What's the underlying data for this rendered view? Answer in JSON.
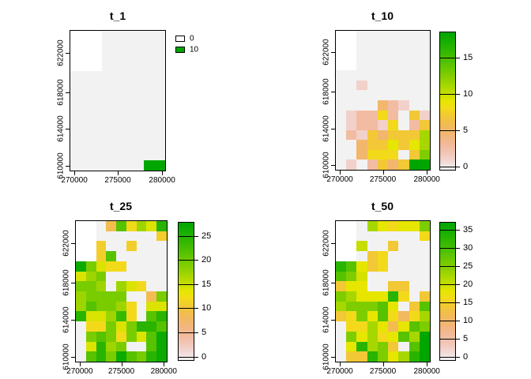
{
  "figure": {
    "background_color": "#ffffff",
    "palette_name": "reversed terrain.colors (white-pink-tan-yellow-green)",
    "na_color": "#ffffff",
    "zero_color": "#f2f2f2",
    "max_color": "#00a600"
  },
  "axes": {
    "x_tick_labels": [
      "270000",
      "275000",
      "280000"
    ],
    "y_tick_labels": [
      "610000",
      "614000",
      "618000",
      "622000"
    ]
  },
  "chart_data": [
    {
      "type": "heatmap",
      "title": "t_1",
      "vmax": 10,
      "x_ticks": [
        "270000",
        "275000",
        "280000"
      ],
      "y_ticks": [
        "610000",
        "614000",
        "618000",
        "622000"
      ],
      "legend": {
        "type": "swatches",
        "items": [
          {
            "label": "0",
            "value": 0
          },
          {
            "label": "10",
            "value": 10
          }
        ]
      },
      "grid": [
        [
          null,
          null,
          null,
          0,
          0,
          0,
          0,
          0,
          0
        ],
        [
          null,
          null,
          null,
          0,
          0,
          0,
          0,
          0,
          0
        ],
        [
          null,
          null,
          null,
          0,
          0,
          0,
          0,
          0,
          0
        ],
        [
          null,
          null,
          null,
          0,
          0,
          0,
          0,
          0,
          0
        ],
        [
          0,
          0,
          0,
          0,
          0,
          0,
          0,
          0,
          0
        ],
        [
          0,
          0,
          0,
          0,
          0,
          0,
          0,
          0,
          0
        ],
        [
          0,
          0,
          0,
          0,
          0,
          0,
          0,
          0,
          0
        ],
        [
          0,
          0,
          0,
          0,
          0,
          0,
          0,
          0,
          0
        ],
        [
          0,
          0,
          0,
          0,
          0,
          0,
          0,
          0,
          0
        ],
        [
          0,
          0,
          0,
          0,
          0,
          0,
          0,
          0,
          0
        ],
        [
          0,
          0,
          0,
          0,
          0,
          0,
          0,
          0,
          0
        ],
        [
          0,
          0,
          0,
          0,
          0,
          0,
          0,
          0,
          0
        ],
        [
          0,
          0,
          0,
          0,
          0,
          0,
          0,
          0,
          0
        ],
        [
          0,
          0,
          0,
          0,
          0,
          0,
          0,
          10,
          10
        ]
      ]
    },
    {
      "type": "heatmap",
      "title": "t_10",
      "vmax": 18,
      "x_ticks": [
        "270000",
        "275000",
        "280000"
      ],
      "y_ticks": [
        "610000",
        "614000",
        "618000",
        "622000"
      ],
      "legend": {
        "type": "colorbar",
        "ticks": [
          0,
          5,
          10,
          15
        ]
      },
      "grid": [
        [
          null,
          null,
          0,
          0,
          0,
          0,
          0,
          0,
          0
        ],
        [
          null,
          null,
          0,
          0,
          0,
          0,
          0,
          0,
          0
        ],
        [
          null,
          null,
          0,
          0,
          0,
          0,
          0,
          0,
          0
        ],
        [
          null,
          null,
          0,
          0,
          0,
          0,
          0,
          0,
          0
        ],
        [
          0,
          0,
          0,
          0,
          0,
          0,
          0,
          0,
          0
        ],
        [
          0,
          0,
          1.5,
          0,
          0,
          0,
          0,
          0,
          0
        ],
        [
          0,
          0,
          0,
          0,
          0,
          0,
          0,
          0,
          0
        ],
        [
          0,
          0,
          0,
          0,
          5,
          3,
          1.5,
          0,
          0
        ],
        [
          0,
          1.5,
          3,
          3,
          8,
          3,
          0,
          7,
          1.5
        ],
        [
          0,
          1.5,
          3,
          3,
          1.5,
          8,
          0,
          3,
          7
        ],
        [
          0,
          3,
          1.5,
          7,
          5,
          7,
          7,
          7,
          11
        ],
        [
          0,
          0,
          5,
          7,
          7,
          9,
          7,
          9,
          11
        ],
        [
          0,
          0,
          5,
          8,
          8,
          8,
          0,
          7,
          12.5
        ],
        [
          0,
          1.5,
          0,
          3,
          7,
          5,
          7,
          18,
          18
        ]
      ]
    },
    {
      "type": "heatmap",
      "title": "t_25",
      "vmax": 27,
      "x_ticks": [
        "270000",
        "275000",
        "280000"
      ],
      "y_ticks": [
        "610000",
        "614000",
        "618000",
        "622000"
      ],
      "legend": {
        "type": "colorbar",
        "ticks": [
          0,
          5,
          10,
          15,
          20,
          25
        ]
      },
      "grid": [
        [
          null,
          null,
          0,
          9,
          21,
          12,
          17,
          14,
          24
        ],
        [
          null,
          null,
          0,
          0,
          0,
          0,
          0,
          0,
          11
        ],
        [
          null,
          null,
          11,
          0,
          0,
          11,
          0,
          0,
          0
        ],
        [
          null,
          null,
          11,
          21,
          0,
          0,
          0,
          0,
          0
        ],
        [
          26,
          19,
          14,
          12,
          12,
          0,
          0,
          0,
          0
        ],
        [
          14,
          17,
          19,
          0,
          0,
          0,
          0,
          0,
          0
        ],
        [
          19,
          19,
          17,
          0,
          17,
          14,
          12,
          0,
          0
        ],
        [
          17,
          19,
          19,
          19,
          19,
          0,
          0,
          9,
          19
        ],
        [
          17,
          21,
          19,
          19,
          17,
          12,
          0,
          14,
          14
        ],
        [
          24,
          14,
          14,
          17,
          23,
          12,
          0,
          21,
          24
        ],
        [
          0,
          12,
          12,
          19,
          14,
          19,
          24,
          24,
          21
        ],
        [
          0,
          19,
          21,
          19,
          12,
          19,
          14,
          21,
          26
        ],
        [
          0,
          14,
          24,
          17,
          19,
          0,
          0,
          21,
          26
        ],
        [
          0,
          21,
          24,
          19,
          26,
          21,
          19,
          24,
          26
        ]
      ]
    },
    {
      "type": "heatmap",
      "title": "t_50",
      "vmax": 36,
      "x_ticks": [
        "270000",
        "275000",
        "280000"
      ],
      "y_ticks": [
        "610000",
        "614000",
        "618000",
        "622000"
      ],
      "legend": {
        "type": "colorbar",
        "ticks": [
          0,
          5,
          10,
          15,
          20,
          25,
          30,
          35
        ]
      },
      "grid": [
        [
          null,
          null,
          0,
          22,
          18,
          16,
          18,
          18,
          25
        ],
        [
          null,
          null,
          0,
          0,
          0,
          0,
          0,
          0,
          16
        ],
        [
          null,
          null,
          20,
          0,
          0,
          14,
          0,
          0,
          0
        ],
        [
          null,
          null,
          0,
          14,
          16,
          0,
          0,
          0,
          0
        ],
        [
          32,
          28,
          18,
          14,
          16,
          0,
          0,
          0,
          0
        ],
        [
          28,
          25,
          19,
          0,
          0,
          0,
          0,
          0,
          0
        ],
        [
          14,
          18,
          18,
          0,
          0,
          14,
          14,
          0,
          0
        ],
        [
          25,
          22,
          18,
          18,
          18,
          32,
          16,
          0,
          14
        ],
        [
          22,
          25,
          25,
          25,
          28,
          18,
          0,
          14,
          28
        ],
        [
          14,
          16,
          25,
          18,
          28,
          16,
          11,
          16,
          22
        ],
        [
          0,
          16,
          16,
          22,
          18,
          12,
          18,
          28,
          25
        ],
        [
          0,
          25,
          18,
          22,
          16,
          18,
          28,
          22,
          36
        ],
        [
          0,
          18,
          32,
          22,
          25,
          14,
          0,
          28,
          36
        ],
        [
          0,
          14,
          14,
          32,
          25,
          18,
          22,
          32,
          36
        ]
      ]
    }
  ]
}
